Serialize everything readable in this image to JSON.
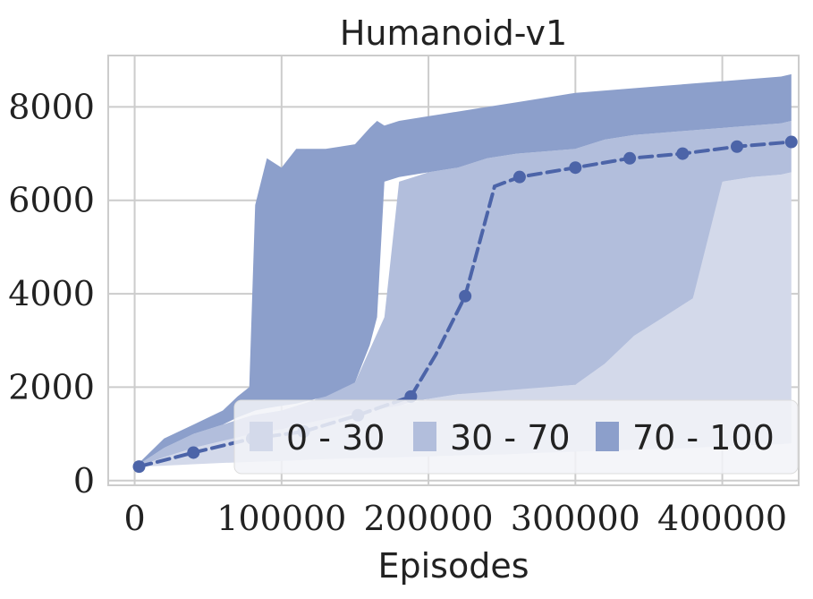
{
  "chart_data": {
    "type": "line",
    "title": "Humanoid-v1",
    "xlabel": "Episodes",
    "ylabel": "",
    "xlim": [
      -18000,
      452000
    ],
    "ylim": [
      -100,
      9100
    ],
    "xticks": [
      0,
      100000,
      200000,
      300000,
      400000
    ],
    "yticks": [
      0,
      2000,
      4000,
      6000,
      8000
    ],
    "xtick_labels": [
      "0",
      "100000",
      "200000",
      "300000",
      "400000"
    ],
    "ytick_labels": [
      "0",
      "2000",
      "4000",
      "6000",
      "8000"
    ],
    "grid": true,
    "legend_position": "bottom-right",
    "colors": {
      "line": "#4c64a8",
      "band_0_30": "#d3d9ea",
      "band_30_70": "#b2bedc",
      "band_70_100": "#8c9fcb"
    },
    "median": {
      "x": [
        3000,
        40000,
        80000,
        115000,
        152000,
        188000,
        205000,
        225000,
        245000,
        262000,
        300000,
        337000,
        373000,
        410000,
        447000
      ],
      "y": [
        300,
        600,
        900,
        1050,
        1400,
        1800,
        2700,
        3950,
        6300,
        6500,
        6700,
        6900,
        7000,
        7150,
        7250
      ]
    },
    "median_markers_x": [
      3000,
      40000,
      80000,
      115000,
      152000,
      188000,
      225000,
      262000,
      300000,
      337000,
      373000,
      410000,
      447000
    ],
    "median_markers_y": [
      300,
      600,
      900,
      1050,
      1400,
      1800,
      3950,
      6500,
      6700,
      6900,
      7000,
      7150,
      7250
    ],
    "series": [
      {
        "name": "0 - 30",
        "x": [
          3000,
          20000,
          40000,
          60000,
          80000,
          100000,
          120000,
          150000,
          180000,
          200000,
          220000,
          250000,
          280000,
          300000,
          320000,
          340000,
          360000,
          380000,
          390000,
          400000,
          420000,
          440000,
          447000
        ],
        "low": [
          300,
          320,
          350,
          380,
          400,
          420,
          450,
          480,
          500,
          520,
          540,
          560,
          600,
          620,
          640,
          660,
          680,
          700,
          720,
          740,
          760,
          780,
          800
        ],
        "high": [
          320,
          500,
          700,
          850,
          1000,
          1100,
          1250,
          1450,
          1600,
          1750,
          1850,
          1950,
          2000,
          2050,
          2500,
          3100,
          3500,
          3900,
          5300,
          6400,
          6500,
          6550,
          6600
        ]
      },
      {
        "name": "30 - 70",
        "x": [
          3000,
          20000,
          40000,
          60000,
          80000,
          100000,
          120000,
          150000,
          170000,
          180000,
          190000,
          200000,
          220000,
          240000,
          260000,
          280000,
          300000,
          320000,
          340000,
          360000,
          380000,
          400000,
          420000,
          440000,
          447000
        ],
        "low": [
          320,
          500,
          700,
          850,
          1000,
          1100,
          1250,
          1450,
          1550,
          1600,
          1700,
          1750,
          1850,
          1900,
          1950,
          2000,
          2050,
          2500,
          3100,
          3500,
          3900,
          6400,
          6500,
          6550,
          6600
        ],
        "high": [
          350,
          700,
          1000,
          1200,
          1400,
          1500,
          1700,
          2100,
          3500,
          6400,
          6500,
          6600,
          6700,
          6900,
          7000,
          7050,
          7100,
          7300,
          7400,
          7450,
          7500,
          7550,
          7600,
          7650,
          7700
        ]
      },
      {
        "name": "70 - 100",
        "x": [
          3000,
          20000,
          40000,
          60000,
          70000,
          78000,
          82000,
          90000,
          100000,
          110000,
          130000,
          150000,
          160000,
          165000,
          170000,
          180000,
          200000,
          220000,
          240000,
          260000,
          280000,
          300000,
          320000,
          340000,
          360000,
          380000,
          400000,
          420000,
          440000,
          447000
        ],
        "low": [
          350,
          700,
          1000,
          1200,
          1350,
          1450,
          1500,
          1550,
          1600,
          1650,
          1800,
          2100,
          2900,
          3500,
          6400,
          6500,
          6600,
          6700,
          6900,
          7000,
          7050,
          7100,
          7300,
          7400,
          7450,
          7500,
          7550,
          7600,
          7650,
          7700
        ],
        "high": [
          380,
          900,
          1200,
          1500,
          1800,
          2000,
          5900,
          6900,
          6700,
          7100,
          7100,
          7200,
          7550,
          7700,
          7600,
          7700,
          7800,
          7900,
          8000,
          8100,
          8200,
          8300,
          8350,
          8400,
          8450,
          8500,
          8550,
          8600,
          8650,
          8700
        ]
      }
    ]
  }
}
